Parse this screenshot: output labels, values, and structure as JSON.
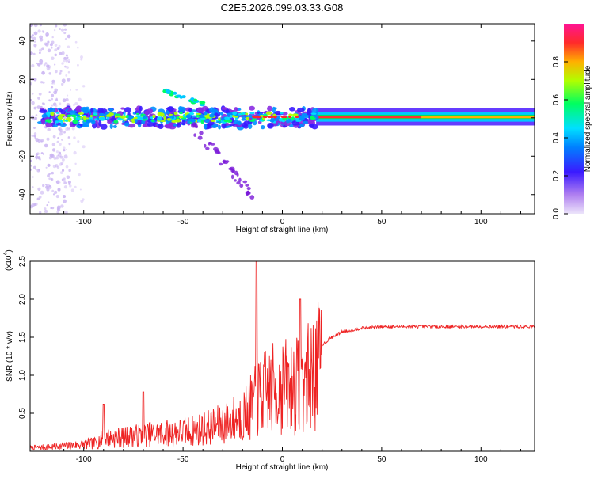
{
  "chart_data": [
    {
      "type": "heatmap",
      "title": "C2E5.2026.099.03.33.G08",
      "xlabel": "Height of straight line (km)",
      "ylabel": "Frequency (Hz)",
      "xlim": [
        -127,
        127
      ],
      "ylim": [
        -50,
        49
      ],
      "xticks": [
        -100,
        -50,
        0,
        50,
        100
      ],
      "yticks": [
        -40,
        -20,
        0,
        20,
        40
      ],
      "colorbar": {
        "label": "Normalized spectral amplitude",
        "range": [
          0,
          1
        ],
        "ticks": [
          0.0,
          0.2,
          0.4,
          0.6,
          0.8
        ],
        "tick_labels": [
          "0.0",
          "0.2",
          "0.4",
          "0.6",
          "0.8"
        ],
        "colormap": [
          "#e8e0f8",
          "#8a2be2",
          "#1a1aff",
          "#00e5ff",
          "#00ff40",
          "#c8ff00",
          "#ffa500",
          "#ff2a2a",
          "#ff1493"
        ]
      },
      "band": {
        "center_freq_hz": 0,
        "noisy_region_km": [
          -127,
          17
        ],
        "stable_region_km": [
          17,
          127
        ],
        "offset_branch": {
          "x_start": -60,
          "x_end": -40,
          "freq_hz": 14
        },
        "descending_tail": {
          "x_start": -45,
          "x_end": -15,
          "freq_start_hz": -5,
          "freq_end_hz": -40
        }
      }
    },
    {
      "type": "line",
      "title": "",
      "xlabel": "Height of straight line (km)",
      "ylabel": "SNR (10 * v/v)",
      "multiplier_label": "(x10",
      "multiplier_exp": "4",
      "xlim": [
        -127,
        127
      ],
      "ylim": [
        0,
        2.5
      ],
      "xticks": [
        -100,
        -50,
        0,
        50,
        100
      ],
      "yticks": [
        0.5,
        1.0,
        1.5,
        2.0,
        2.5
      ],
      "ytick_labels": [
        "0.5",
        "1.0",
        "1.5",
        "2.0",
        "2.5"
      ],
      "color": "#ee2222",
      "trend": {
        "x": [
          -127,
          -110,
          -95,
          -90,
          -80,
          -70,
          -60,
          -50,
          -40,
          -30,
          -20,
          -15,
          -10,
          -5,
          0,
          5,
          10,
          15,
          20,
          25,
          30,
          40,
          50,
          60,
          80,
          100,
          127
        ],
        "y": [
          0.05,
          0.08,
          0.12,
          0.2,
          0.22,
          0.25,
          0.28,
          0.3,
          0.35,
          0.42,
          0.55,
          0.7,
          0.9,
          0.95,
          1.0,
          1.0,
          1.05,
          1.2,
          1.4,
          1.5,
          1.57,
          1.62,
          1.64,
          1.64,
          1.64,
          1.64,
          1.64
        ]
      },
      "spikes": [
        {
          "x": -13,
          "y": 2.5
        },
        {
          "x": 9,
          "y": 2.0
        },
        {
          "x": -90,
          "y": 0.62
        },
        {
          "x": -70,
          "y": 0.78
        }
      ]
    }
  ]
}
